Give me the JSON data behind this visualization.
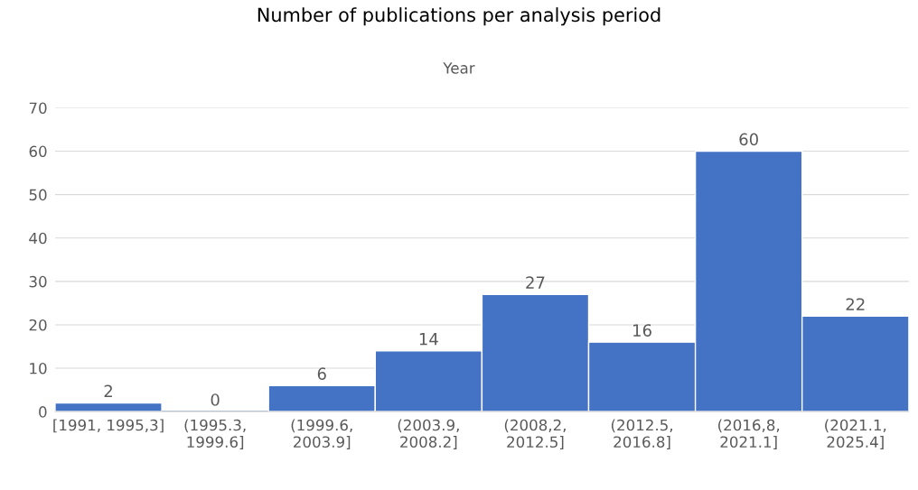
{
  "chart_data": {
    "type": "bar",
    "title": "Number of publications per analysis period",
    "xlabel": "Year",
    "categories": [
      "[1991, 1995,3]",
      "(1995.3,\n1999.6]",
      "(1999.6,\n2003.9]",
      "(2003.9,\n2008.2]",
      "(2008,2,\n2012.5]",
      "(2012.5,\n2016.8]",
      "(2016,8,\n2021.1]",
      "(2021.1,\n2025.4]"
    ],
    "values": [
      2,
      0,
      6,
      14,
      27,
      16,
      60,
      22
    ],
    "color": "#4472c4",
    "ylim": [
      0,
      70
    ],
    "yticks": [
      0,
      10,
      20,
      30,
      40,
      50,
      60,
      70
    ],
    "grid": "y",
    "data_labels": true
  }
}
